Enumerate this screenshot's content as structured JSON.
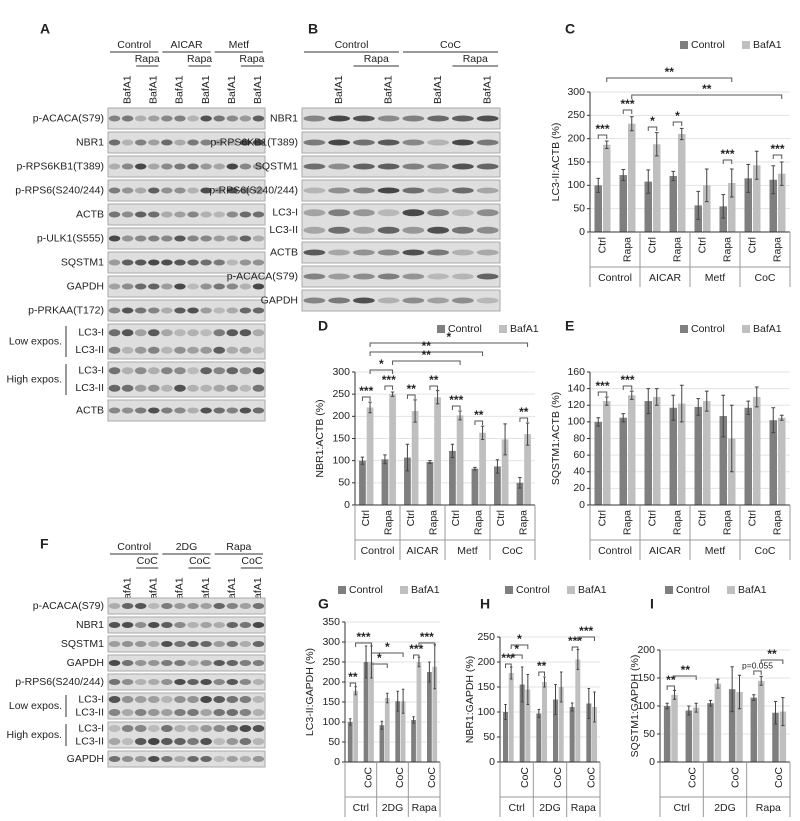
{
  "blots": [
    {
      "panel": "A",
      "groups": [
        {
          "name": "Control",
          "sub": "Rapa"
        },
        {
          "name": "AICAR",
          "sub": "Rapa"
        },
        {
          "name": "Metf",
          "sub": "Rapa"
        }
      ],
      "lanes": [
        null,
        "BafA1",
        null,
        "BafA1",
        null,
        "BafA1",
        null,
        "BafA1",
        null,
        "BafA1",
        null,
        "BafA1"
      ],
      "rows": [
        {
          "label": "p-ACACA(S79)"
        },
        {
          "label": "NBR1"
        },
        {
          "label": "p-RPS6KB1(T389)"
        },
        {
          "label": "p-RPS6(S240/244)"
        },
        {
          "label": "ACTB"
        },
        {
          "label": "p-ULK1(S555)"
        },
        {
          "label": "SQSTM1"
        },
        {
          "label": "GAPDH"
        },
        {
          "label": "p-PRKAA(T172)"
        },
        {
          "label": "Low expos.",
          "bands": [
            "LC3-I",
            "LC3-II"
          ]
        },
        {
          "label": "High expos.",
          "bands": [
            "LC3-I",
            "LC3-II"
          ]
        },
        {
          "label": "ACTB"
        }
      ]
    },
    {
      "panel": "B",
      "groups": [
        {
          "name": "Control",
          "sub": "Rapa"
        },
        {
          "name": "CoC",
          "sub": "Rapa"
        }
      ],
      "lanes": [
        null,
        "BafA1",
        null,
        "BafA1",
        null,
        "BafA1",
        null,
        "BafA1"
      ],
      "rows": [
        {
          "label": "NBR1"
        },
        {
          "label": "p-RPS6KB1(T389)"
        },
        {
          "label": "SQSTM1"
        },
        {
          "label": "p-RPS6(S240/244)"
        },
        {
          "bands": [
            "LC3-I",
            "LC3-II"
          ]
        },
        {
          "label": "ACTB"
        },
        {
          "label": "p-ACACA(S79)"
        },
        {
          "label": "GAPDH"
        }
      ]
    },
    {
      "panel": "F",
      "groups": [
        {
          "name": "Control",
          "sub": "CoC"
        },
        {
          "name": "2DG",
          "sub": "CoC"
        },
        {
          "name": "Rapa",
          "sub": "CoC"
        }
      ],
      "lanes": [
        null,
        "BafA1",
        null,
        "BafA1",
        null,
        "BafA1",
        null,
        "BafA1",
        null,
        "BafA1",
        null,
        "BafA1"
      ],
      "rows": [
        {
          "label": "p-ACACA(S79)"
        },
        {
          "label": "NBR1"
        },
        {
          "label": "SQSTM1"
        },
        {
          "label": "GAPDH"
        },
        {
          "label": "p-RPS6(S240/244)"
        },
        {
          "label": "Low expos.",
          "bands": [
            "LC3-I",
            "LC3-II"
          ]
        },
        {
          "label": "High expos.",
          "bands": [
            "LC3-I",
            "LC3-II"
          ]
        },
        {
          "label": "GAPDH"
        }
      ]
    }
  ],
  "chart_data": [
    {
      "type": "bar",
      "panel": "C",
      "y_label": "LC3-II:ACTB (%)",
      "categories": [
        "Ctrl",
        "Rapa",
        "Ctrl",
        "Rapa",
        "Ctrl",
        "Rapa",
        "Ctrl",
        "Rapa"
      ],
      "groups": [
        "Control",
        "AICAR",
        "Metf",
        "CoC"
      ],
      "series": [
        {
          "name": "Control",
          "color": "#7f7f7f",
          "values": [
            100,
            122,
            108,
            120,
            57,
            55,
            115,
            112
          ],
          "errors": [
            15,
            12,
            25,
            10,
            30,
            25,
            30,
            30
          ]
        },
        {
          "name": "BafA1",
          "color": "#bfbfbf",
          "values": [
            187,
            232,
            188,
            210,
            100,
            105,
            143,
            125
          ],
          "errors": [
            8,
            15,
            25,
            12,
            35,
            30,
            30,
            25
          ]
        }
      ],
      "ylim": [
        0,
        300
      ],
      "yticks": [
        0,
        50,
        100,
        150,
        200,
        250,
        300
      ],
      "grid": true,
      "annotations": [
        "**",
        "**",
        "***",
        "***",
        "*",
        "*",
        "***",
        "***"
      ]
    },
    {
      "type": "bar",
      "panel": "D",
      "y_label": "NBR1:ACTB (%)",
      "categories": [
        "Ctrl",
        "Rapa",
        "Ctrl",
        "Rapa",
        "Ctrl",
        "Rapa",
        "Ctrl",
        "Rapa"
      ],
      "groups": [
        "Control",
        "AICAR",
        "Metf",
        "CoC"
      ],
      "series": [
        {
          "name": "Control",
          "color": "#7f7f7f",
          "values": [
            100,
            103,
            107,
            97,
            122,
            82,
            87,
            50
          ],
          "errors": [
            8,
            10,
            30,
            3,
            15,
            3,
            15,
            12
          ]
        },
        {
          "name": "BafA1",
          "color": "#bfbfbf",
          "values": [
            220,
            250,
            212,
            243,
            202,
            163,
            148,
            160
          ],
          "errors": [
            12,
            5,
            25,
            15,
            10,
            15,
            35,
            25
          ]
        }
      ],
      "ylim": [
        0,
        300
      ],
      "yticks": [
        0,
        50,
        100,
        150,
        200,
        250,
        300
      ],
      "grid": true,
      "annotations": [
        "*",
        "**",
        "**",
        "*",
        "***",
        "***",
        "**",
        "**",
        "***",
        "**",
        "**"
      ]
    },
    {
      "type": "bar",
      "panel": "E",
      "y_label": "SQSTM1:ACTB (%)",
      "categories": [
        "Ctrl",
        "Rapa",
        "Ctrl",
        "Rapa",
        "Ctrl",
        "Rapa",
        "Ctrl",
        "Rapa"
      ],
      "groups": [
        "Control",
        "AICAR",
        "Metf",
        "CoC"
      ],
      "series": [
        {
          "name": "Control",
          "color": "#7f7f7f",
          "values": [
            100,
            105,
            125,
            117,
            118,
            107,
            117,
            102
          ],
          "errors": [
            5,
            5,
            15,
            15,
            10,
            25,
            8,
            15
          ]
        },
        {
          "name": "BafA1",
          "color": "#bfbfbf",
          "values": [
            125,
            132,
            130,
            122,
            125,
            80,
            130,
            105
          ],
          "errors": [
            5,
            5,
            10,
            22,
            12,
            40,
            12,
            3
          ]
        }
      ],
      "ylim": [
        0,
        160
      ],
      "yticks": [
        0,
        20,
        40,
        60,
        80,
        100,
        120,
        140,
        160
      ],
      "grid": true,
      "annotations": [
        "***",
        "***"
      ]
    },
    {
      "type": "bar",
      "panel": "G",
      "y_label": "LC3-II:GAPDH (%)",
      "categories": [
        null,
        "CoC",
        null,
        "CoC",
        null,
        "CoC"
      ],
      "groups": [
        "Ctrl",
        "2DG",
        "Rapa"
      ],
      "series": [
        {
          "name": "Control",
          "color": "#7f7f7f",
          "values": [
            100,
            250,
            92,
            152,
            105,
            225
          ],
          "errors": [
            8,
            40,
            10,
            25,
            8,
            25
          ]
        },
        {
          "name": "BafA1",
          "color": "#bfbfbf",
          "values": [
            178,
            250,
            160,
            152,
            250,
            238
          ],
          "errors": [
            10,
            40,
            12,
            30,
            12,
            55
          ]
        }
      ],
      "ylim": [
        0,
        350
      ],
      "yticks": [
        0,
        50,
        100,
        150,
        200,
        250,
        300,
        350
      ],
      "grid": true,
      "annotations": [
        "***",
        "**",
        "*",
        "*",
        "***",
        "***"
      ]
    },
    {
      "type": "bar",
      "panel": "H",
      "y_label": "NBR1:GAPDH (%)",
      "categories": [
        null,
        "CoC",
        null,
        "CoC",
        null,
        "CoC"
      ],
      "groups": [
        "Ctrl",
        "2DG",
        "Rapa"
      ],
      "series": [
        {
          "name": "Control",
          "color": "#7f7f7f",
          "values": [
            100,
            155,
            97,
            125,
            110,
            117
          ],
          "errors": [
            15,
            35,
            8,
            30,
            8,
            30
          ]
        },
        {
          "name": "BafA1",
          "color": "#bfbfbf",
          "values": [
            178,
            145,
            160,
            150,
            205,
            110
          ],
          "errors": [
            12,
            30,
            10,
            30,
            20,
            30
          ]
        }
      ],
      "ylim": [
        0,
        250
      ],
      "yticks": [
        0,
        50,
        100,
        150,
        200,
        250
      ],
      "grid": true,
      "annotations": [
        "*",
        "*",
        "***",
        "**",
        "***",
        "***"
      ]
    },
    {
      "type": "bar",
      "panel": "I",
      "y_label": "SQSTM1:GAPDH (%)",
      "categories": [
        null,
        "CoC",
        null,
        "CoC",
        null,
        "CoC"
      ],
      "groups": [
        "Ctrl",
        "2DG",
        "Rapa"
      ],
      "series": [
        {
          "name": "Control",
          "color": "#7f7f7f",
          "values": [
            100,
            92,
            105,
            130,
            115,
            88
          ],
          "errors": [
            5,
            8,
            5,
            40,
            5,
            20
          ]
        },
        {
          "name": "BafA1",
          "color": "#bfbfbf",
          "values": [
            120,
            97,
            140,
            125,
            145,
            90
          ],
          "errors": [
            8,
            8,
            8,
            30,
            8,
            25
          ]
        }
      ],
      "ylim": [
        0,
        200
      ],
      "yticks": [
        0,
        50,
        100,
        150,
        200
      ],
      "grid": true,
      "annotations": [
        "**",
        "**",
        "p=0.055",
        "**"
      ]
    }
  ]
}
